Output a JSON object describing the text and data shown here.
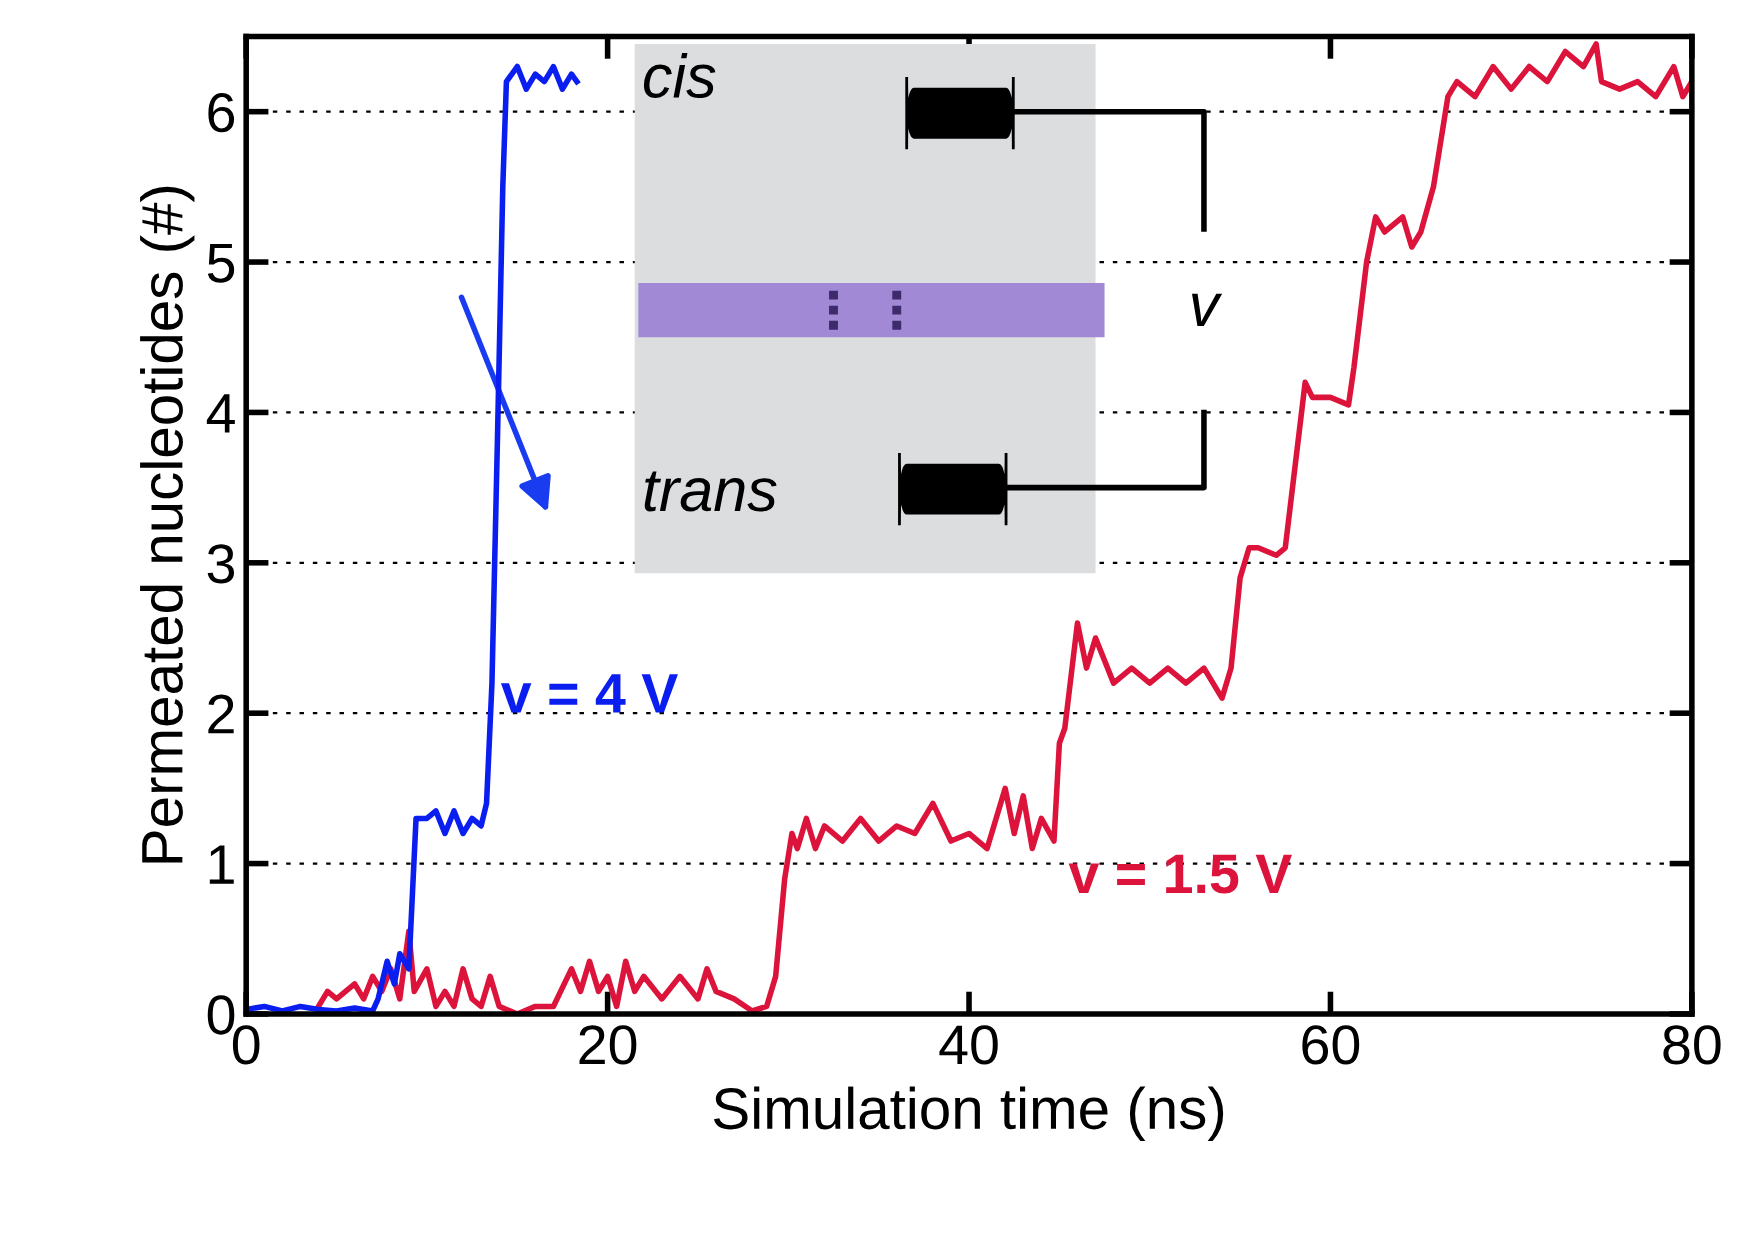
{
  "chart_data": {
    "type": "line",
    "xlabel": "Simulation time (ns)",
    "ylabel": "Permeated nucleotides (#)",
    "xlim": [
      0,
      80
    ],
    "xticks": [
      0,
      20,
      40,
      60,
      80
    ],
    "ylim": [
      0,
      6.5
    ],
    "yticks": [
      0,
      1,
      2,
      3,
      4,
      5,
      6
    ],
    "grid": "y",
    "line_style": "solid",
    "marker": "none",
    "annotations": [
      "cis",
      "trans",
      "v"
    ],
    "series": [
      {
        "name": "v = 1.5 V",
        "color": "#dc143c",
        "x": [
          4,
          4.5,
          5,
          6,
          6.5,
          7,
          7.5,
          8,
          8.5,
          9,
          9.3,
          10,
          10.5,
          11,
          11.5,
          12,
          12.5,
          13,
          13.5,
          14,
          15,
          16,
          17,
          18,
          18.5,
          19,
          19.5,
          20,
          20.5,
          21,
          21.5,
          22,
          23,
          24,
          25,
          25.5,
          26,
          27,
          28,
          28.8,
          29.3,
          29.8,
          30.2,
          30.5,
          31,
          31.5,
          32,
          33,
          34,
          35,
          36,
          37,
          38,
          39,
          40,
          41,
          42,
          42.5,
          43,
          43.5,
          44,
          44.7,
          45,
          45.3,
          46,
          46.5,
          47,
          48,
          49,
          50,
          51,
          52,
          53,
          54,
          54.5,
          55,
          55.5,
          56,
          57,
          57.5,
          58,
          58.6,
          59,
          60,
          61,
          61.3,
          62,
          62.5,
          63,
          64,
          64.5,
          65,
          65.7,
          66.5,
          67,
          68,
          69,
          70,
          71,
          72,
          73,
          74,
          74.7,
          75,
          76,
          77,
          78,
          79,
          79.5,
          80
        ],
        "values": [
          0.05,
          0.15,
          0.1,
          0.2,
          0.1,
          0.25,
          0.15,
          0.3,
          0.1,
          0.55,
          0.15,
          0.3,
          0.05,
          0.15,
          0.05,
          0.3,
          0.1,
          0.05,
          0.25,
          0.05,
          0.0,
          0.05,
          0.05,
          0.3,
          0.15,
          0.35,
          0.15,
          0.25,
          0.05,
          0.35,
          0.15,
          0.25,
          0.1,
          0.25,
          0.1,
          0.3,
          0.15,
          0.1,
          0.02,
          0.05,
          0.25,
          0.9,
          1.2,
          1.1,
          1.3,
          1.1,
          1.25,
          1.15,
          1.3,
          1.15,
          1.25,
          1.2,
          1.4,
          1.15,
          1.2,
          1.1,
          1.5,
          1.2,
          1.45,
          1.1,
          1.3,
          1.15,
          1.8,
          1.9,
          2.6,
          2.3,
          2.5,
          2.2,
          2.3,
          2.2,
          2.3,
          2.2,
          2.3,
          2.1,
          2.3,
          2.9,
          3.1,
          3.1,
          3.05,
          3.1,
          3.6,
          4.2,
          4.1,
          4.1,
          4.05,
          4.3,
          5.0,
          5.3,
          5.2,
          5.3,
          5.1,
          5.2,
          5.5,
          6.1,
          6.2,
          6.1,
          6.3,
          6.15,
          6.3,
          6.2,
          6.4,
          6.3,
          6.45,
          6.2,
          6.15,
          6.2,
          6.1,
          6.3,
          6.1,
          6.2
        ]
      },
      {
        "name": "v = 4 V",
        "color": "#0a1ef0",
        "x": [
          0,
          1,
          2,
          3,
          4,
          5,
          6,
          7,
          7.3,
          7.8,
          8.2,
          8.5,
          9,
          9.2,
          9.4,
          10,
          10.5,
          11,
          11.5,
          12,
          12.5,
          13,
          13.3,
          13.6,
          13.9,
          14.2,
          14.4,
          15,
          15.5,
          16,
          16.5,
          17,
          17.5,
          18,
          18.3
        ],
        "values": [
          0.03,
          0.05,
          0.02,
          0.05,
          0.03,
          0.02,
          0.04,
          0.02,
          0.1,
          0.35,
          0.2,
          0.4,
          0.3,
          0.8,
          1.3,
          1.3,
          1.35,
          1.2,
          1.35,
          1.2,
          1.3,
          1.25,
          1.4,
          2.2,
          3.8,
          5.5,
          6.2,
          6.3,
          6.15,
          6.25,
          6.2,
          6.3,
          6.15,
          6.25,
          6.2
        ]
      }
    ]
  }
}
